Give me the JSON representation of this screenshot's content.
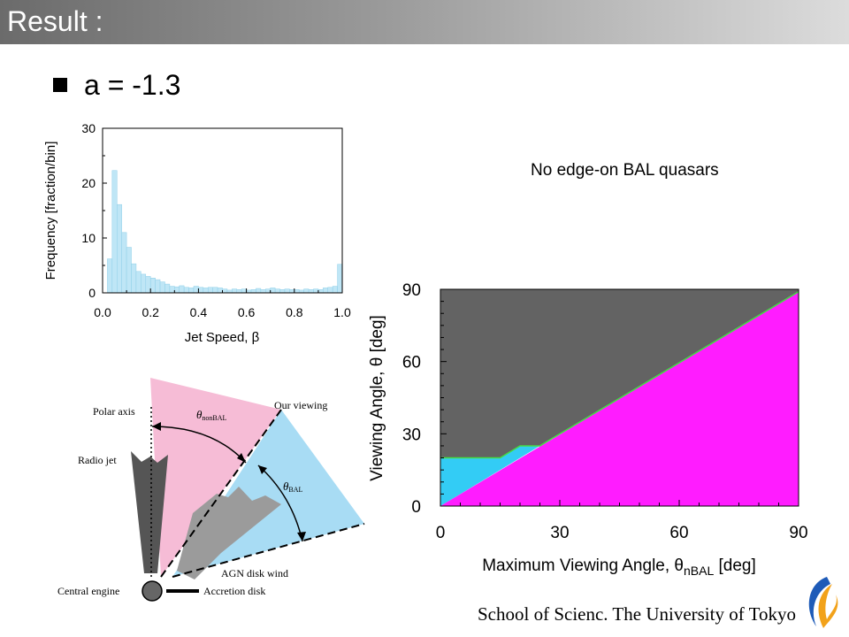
{
  "slide": {
    "title": "Result :",
    "bullet": "a = -1.3",
    "annotation": "No edge-on BAL quasars",
    "footer": "School of Scienc. The University of Tokyo"
  },
  "diagram": {
    "labels": {
      "polar_axis": "Polar axis",
      "our_viewing": "Our viewing",
      "radio_jet": "Radio jet",
      "agn_disk_wind": "AGN disk wind",
      "central_engine": "Central engine",
      "accretion_disk": "Accretion disk",
      "theta_symbol": "θ",
      "theta_nonbal_sub": "nonBAL",
      "theta_bal_sub": "BAL"
    },
    "colors": {
      "pink": "#f6bcd6",
      "blue": "#a8dcf4",
      "jet": "#555555",
      "wind": "#9b9b9b"
    }
  },
  "chart_data": [
    {
      "type": "bar",
      "xlabel": "Jet Speed, β",
      "ylabel": "Frequency [fraction/bin]",
      "xlim": [
        0,
        1.0
      ],
      "ylim": [
        0,
        30
      ],
      "xticks": [
        "0.0",
        "0.2",
        "0.4",
        "0.6",
        "0.8",
        "1.0"
      ],
      "xtick_values": [
        0,
        0.2,
        0.4,
        0.6,
        0.8,
        1.0
      ],
      "yticks": [
        "0",
        "10",
        "20",
        "30"
      ],
      "ytick_values": [
        0,
        10,
        20,
        30
      ],
      "bin_width": 0.02,
      "bin_starts": [
        0.02,
        0.04,
        0.06,
        0.08,
        0.1,
        0.12,
        0.14,
        0.16,
        0.18,
        0.2,
        0.22,
        0.24,
        0.26,
        0.28,
        0.3,
        0.32,
        0.34,
        0.36,
        0.38,
        0.4,
        0.42,
        0.44,
        0.46,
        0.48,
        0.5,
        0.52,
        0.54,
        0.56,
        0.58,
        0.6,
        0.62,
        0.64,
        0.66,
        0.68,
        0.7,
        0.72,
        0.74,
        0.76,
        0.78,
        0.8,
        0.82,
        0.84,
        0.86,
        0.88,
        0.9,
        0.92,
        0.94,
        0.96,
        0.98
      ],
      "values": [
        6.2,
        22.3,
        16.1,
        11.0,
        8.3,
        5.3,
        3.9,
        3.4,
        3.0,
        2.7,
        2.4,
        2.0,
        1.6,
        1.2,
        1.1,
        1.3,
        1.0,
        0.9,
        1.2,
        1.0,
        0.9,
        1.0,
        1.0,
        0.9,
        0.7,
        0.5,
        0.7,
        0.6,
        0.7,
        0.5,
        0.6,
        0.8,
        0.6,
        0.7,
        0.9,
        0.7,
        0.6,
        0.7,
        0.6,
        0.6,
        0.5,
        0.7,
        0.6,
        0.7,
        0.6,
        0.9,
        1.0,
        1.2,
        5.2
      ],
      "bar_color": "#bfe6f6"
    },
    {
      "type": "area",
      "xlabel": "Maximum Viewing Angle, θ",
      "xlabel_sub": "nBAL",
      "xlabel_unit": " [deg]",
      "ylabel": "Viewing Angle, θ [deg]",
      "xlim": [
        0,
        90
      ],
      "ylim": [
        0,
        90
      ],
      "xticks": [
        "0",
        "30",
        "60",
        "90"
      ],
      "xtick_values": [
        0,
        30,
        60,
        90
      ],
      "yticks": [
        "0",
        "30",
        "60",
        "90"
      ],
      "ytick_values": [
        0,
        30,
        60,
        90
      ],
      "grid": false,
      "series": [
        {
          "color": "#636363",
          "polygon": [
            [
              0,
              90
            ],
            [
              90,
              90
            ],
            [
              90,
              89
            ],
            [
              28,
              28
            ],
            [
              25,
              25
            ],
            [
              20,
              25
            ],
            [
              15,
              20
            ],
            [
              0,
              20
            ]
          ]
        },
        {
          "color": "#33ccf5",
          "polygon": [
            [
              0,
              20
            ],
            [
              15,
              20
            ],
            [
              20,
              25
            ],
            [
              25,
              25
            ],
            [
              28,
              28
            ],
            [
              0,
              0
            ]
          ]
        },
        {
          "color": "#ff1cff",
          "polygon": [
            [
              0,
              0
            ],
            [
              90,
              89
            ],
            [
              90,
              0
            ]
          ]
        }
      ],
      "boundary_color": "#44dd44"
    }
  ]
}
